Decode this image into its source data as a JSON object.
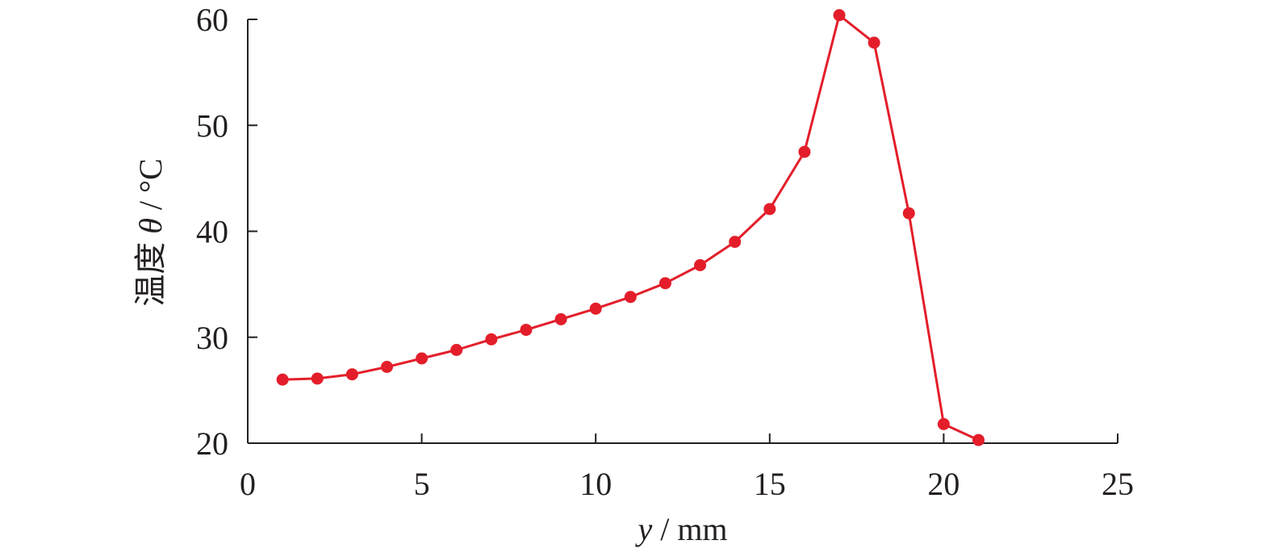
{
  "chart_data": {
    "type": "line",
    "xlabel_var": "y",
    "xlabel_unit": " / mm",
    "ylabel_prefix": "温度 ",
    "ylabel_var": "θ",
    "ylabel_unit": " / °C",
    "xlim": [
      0,
      25
    ],
    "ylim": [
      20,
      60
    ],
    "xticks": [
      0,
      5,
      10,
      15,
      20,
      25
    ],
    "yticks": [
      20,
      30,
      40,
      50,
      60
    ],
    "grid": false,
    "color": "#e31e2a",
    "series": [
      {
        "x": [
          1,
          2,
          3,
          4,
          5,
          6,
          7,
          8,
          9,
          10,
          11,
          12,
          13,
          14,
          15,
          16,
          17,
          18,
          19,
          20,
          21
        ],
        "values": [
          26.0,
          26.1,
          26.5,
          27.2,
          28.0,
          28.8,
          29.8,
          30.7,
          31.7,
          32.7,
          33.8,
          35.1,
          36.8,
          39.0,
          42.1,
          47.5,
          60.4,
          57.8,
          41.7,
          21.8,
          20.3
        ]
      }
    ]
  }
}
